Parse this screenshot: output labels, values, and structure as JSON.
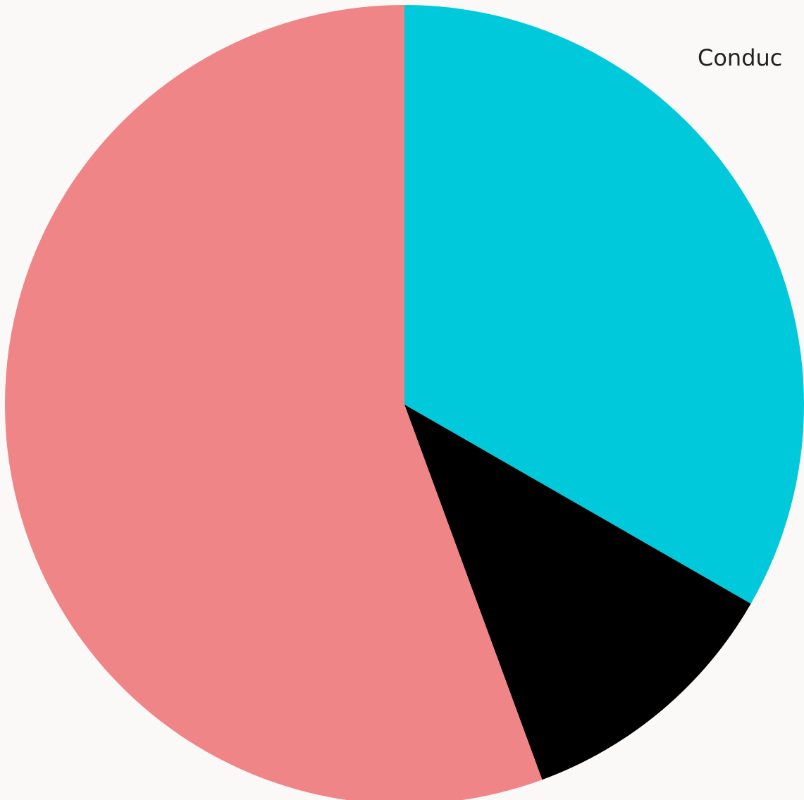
{
  "chart_data": {
    "type": "pie",
    "annotation": "Conduc",
    "categories": [
      null,
      null,
      null
    ],
    "values": [
      33.3,
      11.1,
      55.6
    ],
    "colors": [
      "#00c9dc",
      "#000000",
      "#f08588"
    ]
  }
}
